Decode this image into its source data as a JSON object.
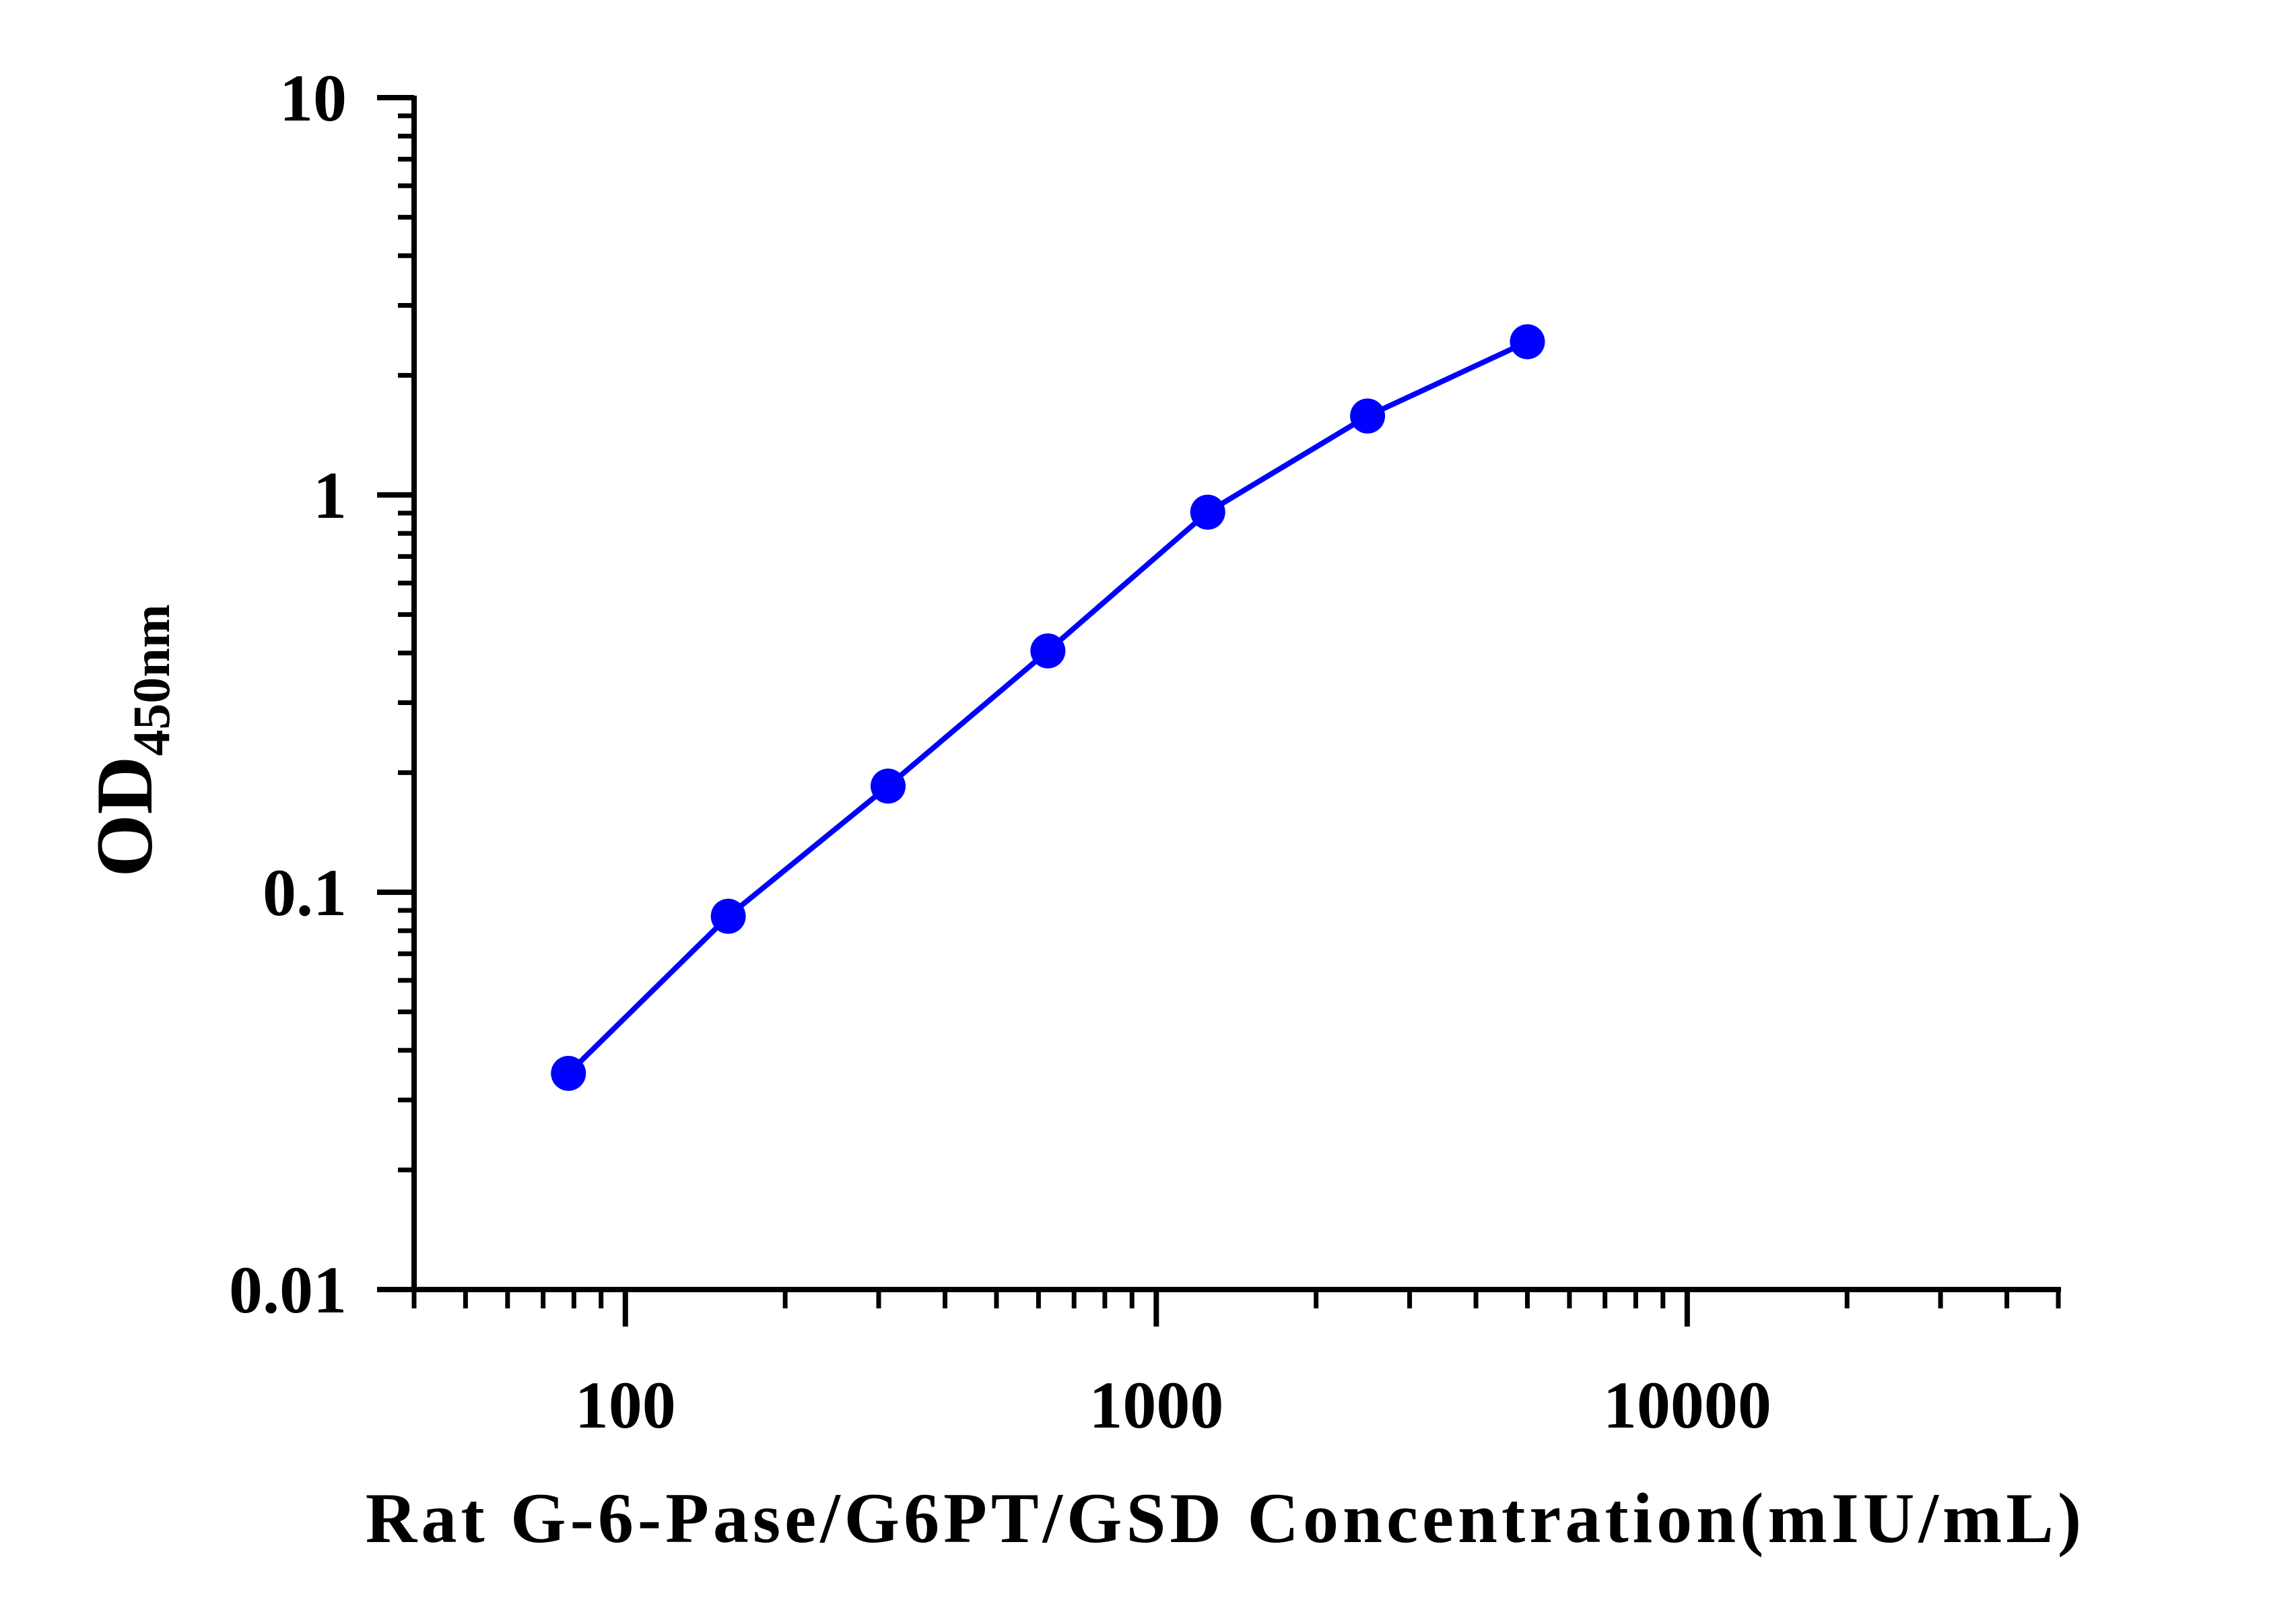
{
  "chart_data": {
    "type": "line",
    "xlabel": "Rat G-6-Pase/G6PT/GSD Concentration(mIU/mL)",
    "ylabel": "OD",
    "ylabel_subscript": "450nm",
    "x_scale": "log",
    "y_scale": "log",
    "xlim": [
      40,
      50000
    ],
    "ylim": [
      0.01,
      10
    ],
    "x_ticks": [
      100,
      1000,
      10000
    ],
    "x_tick_labels": [
      "100",
      "1000",
      "10000"
    ],
    "y_ticks": [
      0.01,
      0.1,
      1,
      10
    ],
    "y_tick_labels": [
      "0.01",
      "0.1",
      "1",
      "10"
    ],
    "grid": false,
    "legend": "none",
    "series": [
      {
        "color": "#0000ff",
        "marker": "circle",
        "x": [
          78.125,
          156.25,
          312.5,
          625,
          1250,
          2500,
          5000
        ],
        "y": [
          0.035,
          0.087,
          0.185,
          0.405,
          0.905,
          1.58,
          2.43
        ]
      }
    ]
  }
}
